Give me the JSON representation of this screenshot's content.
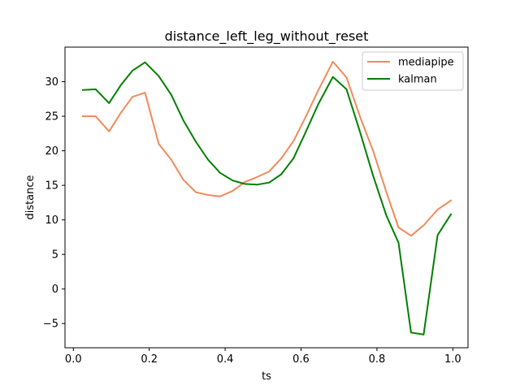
{
  "chart_data": {
    "type": "line",
    "title": "distance_left_leg_without_reset",
    "xlabel": "ts",
    "ylabel": "distance",
    "xlim": [
      -0.022,
      1.04
    ],
    "ylim": [
      -8.5,
      35
    ],
    "xticks": [
      0.0,
      0.2,
      0.4,
      0.6,
      0.8,
      1.0
    ],
    "xtick_labels": [
      "0.0",
      "0.2",
      "0.4",
      "0.6",
      "0.8",
      "1.0"
    ],
    "yticks": [
      -5,
      0,
      5,
      10,
      15,
      20,
      25,
      30
    ],
    "ytick_labels": [
      "−5",
      "0",
      "5",
      "10",
      "15",
      "20",
      "25",
      "30"
    ],
    "grid": false,
    "legend_position": "top-right",
    "x": [
      0.025,
      0.059,
      0.094,
      0.125,
      0.156,
      0.189,
      0.225,
      0.258,
      0.29,
      0.323,
      0.355,
      0.387,
      0.42,
      0.452,
      0.484,
      0.516,
      0.548,
      0.58,
      0.613,
      0.645,
      0.684,
      0.72,
      0.755,
      0.79,
      0.825,
      0.857,
      0.89,
      0.923,
      0.96,
      0.995
    ],
    "series": [
      {
        "name": "mediapipe",
        "color": "#f08a5a",
        "values": [
          25.0,
          25.0,
          22.8,
          25.5,
          27.8,
          28.4,
          21.0,
          18.7,
          15.8,
          14.0,
          13.6,
          13.4,
          14.2,
          15.5,
          16.2,
          17.0,
          18.9,
          21.4,
          25.0,
          28.7,
          32.9,
          30.6,
          25.0,
          20.0,
          14.0,
          8.9,
          7.7,
          9.2,
          11.5,
          12.8
        ]
      },
      {
        "name": "kalman",
        "color": "#008000",
        "values": [
          28.8,
          28.9,
          26.9,
          29.5,
          31.6,
          32.8,
          30.8,
          28.1,
          24.4,
          21.3,
          18.7,
          16.8,
          15.7,
          15.2,
          15.1,
          15.4,
          16.6,
          18.9,
          22.8,
          26.7,
          30.7,
          28.9,
          22.8,
          16.4,
          10.6,
          6.7,
          -6.3,
          -6.6,
          7.8,
          10.8
        ]
      }
    ]
  }
}
